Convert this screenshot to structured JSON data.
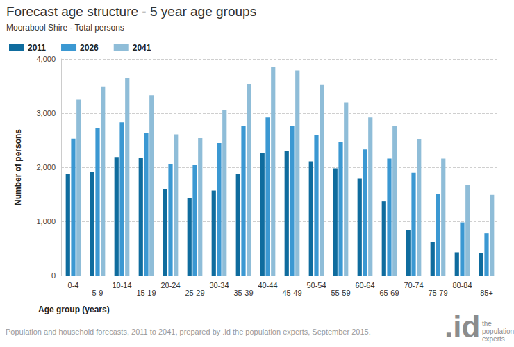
{
  "chart_data": {
    "type": "bar",
    "title": "Forecast age structure - 5 year age groups",
    "subtitle": "Moorabool Shire - Total persons",
    "xlabel": "Age group (years)",
    "ylabel": "Number of persons",
    "source": "Population and household forecasts, 2011 to 2041, prepared by .id the population experts, September 2015.",
    "logo": ".id",
    "logo_caption": [
      "the",
      "population",
      "experts"
    ],
    "categories": [
      "0-4",
      "5-9",
      "10-14",
      "15-19",
      "20-24",
      "25-29",
      "30-34",
      "35-39",
      "40-44",
      "45-49",
      "50-54",
      "55-59",
      "60-64",
      "65-69",
      "70-74",
      "75-79",
      "80-84",
      "85+"
    ],
    "series": [
      {
        "name": "2011",
        "color": "#0f6c9e",
        "values": [
          1880,
          1910,
          2190,
          2180,
          1590,
          1430,
          1570,
          1880,
          2270,
          2300,
          2110,
          1980,
          1790,
          1370,
          840,
          620,
          430,
          410
        ]
      },
      {
        "name": "2026",
        "color": "#3b98d2",
        "values": [
          2530,
          2720,
          2830,
          2630,
          2050,
          2040,
          2450,
          2770,
          2920,
          2770,
          2600,
          2460,
          2330,
          2160,
          1900,
          1500,
          980,
          780
        ]
      },
      {
        "name": "2041",
        "color": "#8fbdd8",
        "values": [
          3250,
          3490,
          3650,
          3330,
          2610,
          2540,
          3060,
          3540,
          3850,
          3790,
          3530,
          3200,
          2920,
          2760,
          2520,
          2160,
          1680,
          1490
        ]
      }
    ],
    "ylim": [
      0,
      4000
    ],
    "yticks": [
      0,
      {
        "value": 1000,
        "label": "1,000"
      },
      {
        "value": 2000,
        "label": "2,000"
      },
      {
        "value": 3000,
        "label": "3,000"
      },
      {
        "value": 4000,
        "label": "4,000"
      }
    ],
    "grid": true,
    "legend": "top-left"
  }
}
